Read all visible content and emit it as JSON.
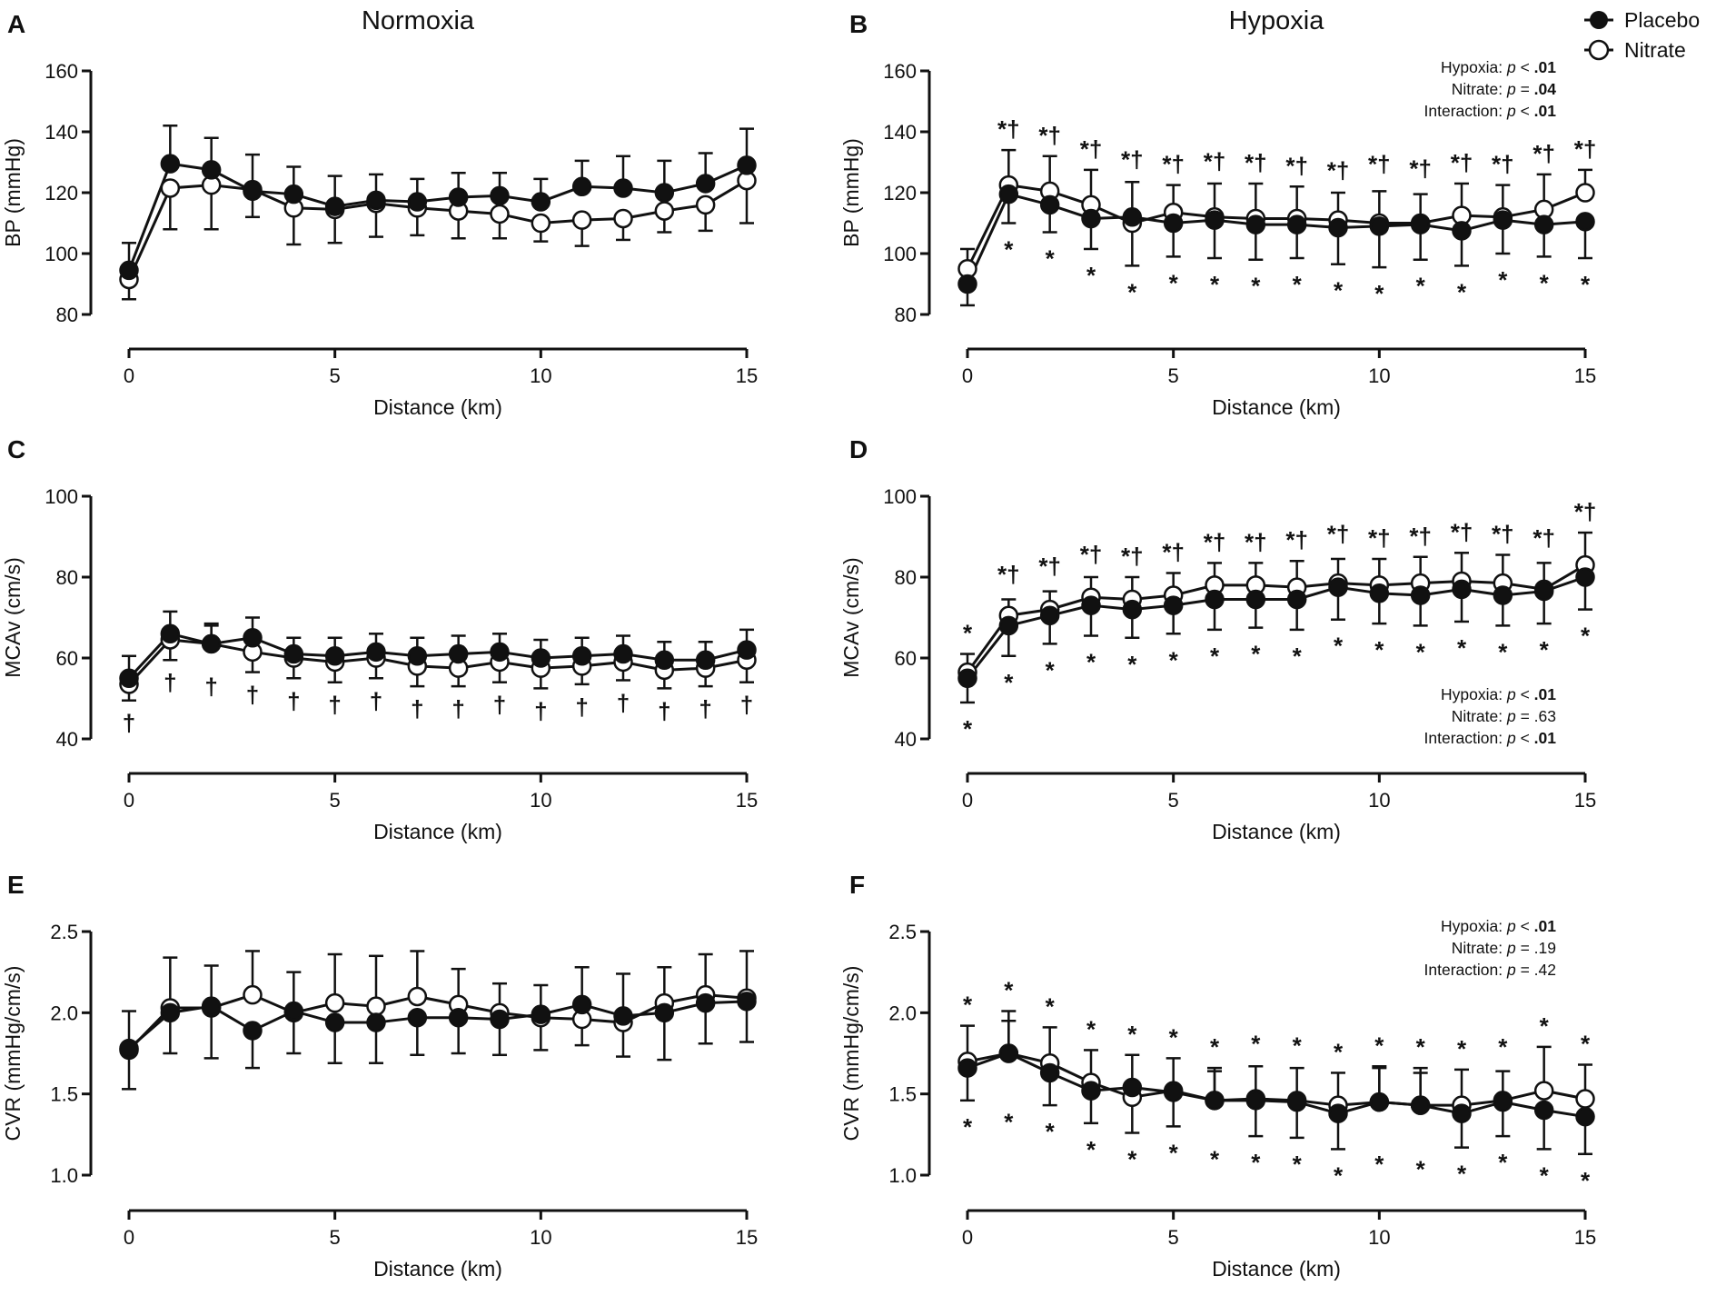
{
  "figure": {
    "column_titles": [
      "Normoxia",
      "Hypoxia"
    ],
    "legend": [
      {
        "label": "Placebo",
        "marker": "filled-circle"
      },
      {
        "label": "Nitrate",
        "marker": "open-circle"
      }
    ],
    "colors": {
      "line": "#111111",
      "open_marker_fill": "#ffffff",
      "background": "#ffffff"
    }
  },
  "chart_data": [
    {
      "panel": "A",
      "type": "line",
      "condition": "Normoxia",
      "xlabel": "Distance (km)",
      "ylabel": "BP (mmHg)",
      "xlim": [
        0,
        15
      ],
      "xticks": [
        0,
        5,
        10,
        15
      ],
      "ylim": [
        80,
        160
      ],
      "yticks": [
        80,
        100,
        120,
        140,
        160
      ],
      "x": [
        0,
        1,
        2,
        3,
        4,
        5,
        6,
        7,
        8,
        9,
        10,
        11,
        12,
        13,
        14,
        15
      ],
      "series": [
        {
          "name": "Placebo",
          "marker": "filled",
          "values": [
            94.5,
            129.5,
            127.5,
            120.5,
            119.5,
            115.5,
            117.5,
            117,
            118.5,
            119,
            117,
            122,
            121.5,
            120,
            123,
            129
          ],
          "errors": [
            9,
            12.5,
            10.5,
            8.5,
            9,
            10,
            8.5,
            7.5,
            8,
            7.5,
            7.5,
            8.5,
            10.5,
            10.5,
            10,
            12
          ]
        },
        {
          "name": "Nitrate",
          "marker": "open",
          "values": [
            91.5,
            121.5,
            122.5,
            121,
            115,
            114.5,
            116.5,
            115,
            114,
            113,
            110,
            111,
            111.5,
            114,
            116,
            124
          ],
          "errors": [
            6.5,
            13.5,
            14.5,
            11.5,
            12,
            11,
            11,
            9,
            9,
            8,
            6,
            8.5,
            7,
            7,
            8.5,
            14
          ]
        }
      ],
      "upper_annotations": [],
      "lower_annotations": [],
      "stats": []
    },
    {
      "panel": "B",
      "type": "line",
      "condition": "Hypoxia",
      "xlabel": "Distance (km)",
      "ylabel": "BP (mmHg)",
      "xlim": [
        0,
        15
      ],
      "xticks": [
        0,
        5,
        10,
        15
      ],
      "ylim": [
        80,
        160
      ],
      "yticks": [
        80,
        100,
        120,
        140,
        160
      ],
      "x": [
        0,
        1,
        2,
        3,
        4,
        5,
        6,
        7,
        8,
        9,
        10,
        11,
        12,
        13,
        14,
        15
      ],
      "series": [
        {
          "name": "Placebo",
          "marker": "filled",
          "values": [
            90,
            119.5,
            116,
            111.5,
            112,
            110,
            111,
            109.5,
            109.5,
            108.5,
            109,
            109.5,
            107.5,
            111,
            109.5,
            110.5
          ],
          "errors": [
            7,
            9.5,
            9,
            10,
            11.5,
            11,
            12.5,
            11.5,
            11,
            12,
            13.5,
            11.5,
            11.5,
            11,
            10.5,
            12
          ]
        },
        {
          "name": "Nitrate",
          "marker": "open",
          "values": [
            95,
            122.5,
            120.5,
            116,
            110,
            113.5,
            112,
            111.5,
            111.5,
            111,
            110,
            110,
            112.5,
            112,
            114.5,
            120
          ],
          "errors": [
            6.5,
            11.5,
            11.5,
            11.5,
            14,
            9,
            11,
            11.5,
            10.5,
            9,
            10.5,
            9.5,
            10.5,
            10.5,
            11.5,
            7.5
          ]
        }
      ],
      "upper_annotations": [
        "",
        "*†",
        "*†",
        "*†",
        "*†",
        "*†",
        "*†",
        "*†",
        "*†",
        "*†",
        "*†",
        "*†",
        "*†",
        "*†",
        "*†",
        "*†"
      ],
      "lower_annotations": [
        "",
        "*",
        "*",
        "*",
        "*",
        "*",
        "*",
        "*",
        "*",
        "*",
        "*",
        "*",
        "*",
        "*",
        "*",
        "*"
      ],
      "stats": [
        {
          "name": "Hypoxia:",
          "p": "p",
          "op": " < ",
          "value": ".01",
          "bold": true
        },
        {
          "name": "Nitrate:",
          "p": "p",
          "op": " = ",
          "value": ".04",
          "bold": true
        },
        {
          "name": "Interaction:",
          "p": "p",
          "op": " < ",
          "value": ".01",
          "bold": true
        }
      ]
    },
    {
      "panel": "C",
      "type": "line",
      "condition": "Normoxia",
      "xlabel": "Distance (km)",
      "ylabel": "MCAv (cm/s)",
      "xlim": [
        0,
        15
      ],
      "xticks": [
        0,
        5,
        10,
        15
      ],
      "ylim": [
        40,
        100
      ],
      "yticks": [
        40,
        60,
        80,
        100
      ],
      "x": [
        0,
        1,
        2,
        3,
        4,
        5,
        6,
        7,
        8,
        9,
        10,
        11,
        12,
        13,
        14,
        15
      ],
      "series": [
        {
          "name": "Placebo",
          "marker": "filled",
          "values": [
            55,
            66,
            63.5,
            65,
            61,
            60.5,
            61.5,
            60.5,
            61,
            61.5,
            60,
            60.5,
            61,
            59.5,
            59.5,
            62
          ],
          "errors": [
            5.5,
            5.5,
            4.5,
            5,
            4,
            4.5,
            4.5,
            4.5,
            4.5,
            4.5,
            4.5,
            4.5,
            4.5,
            4.5,
            4.5,
            5
          ]
        },
        {
          "name": "Nitrate",
          "marker": "open",
          "values": [
            53.5,
            64.5,
            63.5,
            61.5,
            60,
            59,
            60,
            58,
            57.5,
            59,
            57.5,
            58,
            59,
            57,
            57.5,
            59.5
          ],
          "errors": [
            4,
            5,
            5,
            5,
            5,
            5,
            5,
            5,
            4.5,
            5,
            5,
            4.5,
            4.5,
            4.5,
            4.5,
            5.5
          ]
        }
      ],
      "upper_annotations": [],
      "lower_annotations": [
        "†",
        "†",
        "†",
        "†",
        "†",
        "†",
        "†",
        "†",
        "†",
        "†",
        "†",
        "†",
        "†",
        "†",
        "†",
        "†"
      ],
      "stats": []
    },
    {
      "panel": "D",
      "type": "line",
      "condition": "Hypoxia",
      "xlabel": "Distance (km)",
      "ylabel": "MCAv (cm/s)",
      "xlim": [
        0,
        15
      ],
      "xticks": [
        0,
        5,
        10,
        15
      ],
      "ylim": [
        40,
        100
      ],
      "yticks": [
        40,
        60,
        80,
        100
      ],
      "x": [
        0,
        1,
        2,
        3,
        4,
        5,
        6,
        7,
        8,
        9,
        10,
        11,
        12,
        13,
        14,
        15
      ],
      "series": [
        {
          "name": "Placebo",
          "marker": "filled",
          "values": [
            55,
            68,
            70.5,
            73,
            72,
            73,
            74.5,
            74.5,
            74.5,
            77.5,
            76,
            75.5,
            77,
            75.5,
            76.5,
            80
          ],
          "errors": [
            6,
            7.5,
            7,
            7.5,
            7,
            7,
            7.5,
            7,
            7.5,
            8,
            7.5,
            7.5,
            8,
            7.5,
            8,
            8
          ]
        },
        {
          "name": "Nitrate",
          "marker": "open",
          "values": [
            56.5,
            70.5,
            72,
            75,
            74.5,
            75.5,
            78,
            78,
            77.5,
            78.5,
            78,
            78.5,
            79,
            78.5,
            77,
            83
          ],
          "errors": [
            4.5,
            4,
            4.5,
            5,
            5.5,
            5.5,
            5.5,
            5.5,
            6.5,
            6,
            6.5,
            6.5,
            7,
            7,
            6.5,
            8
          ]
        }
      ],
      "upper_annotations": [
        "*",
        "*†",
        "*†",
        "*†",
        "*†",
        "*†",
        "*†",
        "*†",
        "*†",
        "*†",
        "*†",
        "*†",
        "*†",
        "*†",
        "*†",
        "*†"
      ],
      "lower_annotations": [
        "*",
        "*",
        "*",
        "*",
        "*",
        "*",
        "*",
        "*",
        "*",
        "*",
        "*",
        "*",
        "*",
        "*",
        "*",
        "*"
      ],
      "stats": [
        {
          "name": "Hypoxia:",
          "p": "p",
          "op": " < ",
          "value": ".01",
          "bold": true
        },
        {
          "name": "Nitrate:",
          "p": "p",
          "op": " = ",
          "value": ".63",
          "bold": false
        },
        {
          "name": "Interaction:",
          "p": "p",
          "op": " < ",
          "value": ".01",
          "bold": true
        }
      ]
    },
    {
      "panel": "E",
      "type": "line",
      "condition": "Normoxia",
      "xlabel": "Distance (km)",
      "ylabel": "CVR (mmHg/cm/s)",
      "xlim": [
        0,
        15
      ],
      "xticks": [
        0,
        5,
        10,
        15
      ],
      "ylim": [
        1.0,
        2.5
      ],
      "yticks": [
        1.0,
        1.5,
        2.0,
        2.5
      ],
      "x": [
        0,
        1,
        2,
        3,
        4,
        5,
        6,
        7,
        8,
        9,
        10,
        11,
        12,
        13,
        14,
        15
      ],
      "series": [
        {
          "name": "Placebo",
          "marker": "filled",
          "values": [
            1.78,
            2.0,
            2.04,
            1.89,
            2.01,
            1.94,
            1.94,
            1.97,
            1.97,
            1.96,
            1.99,
            2.05,
            1.98,
            2.0,
            2.06,
            2.07
          ],
          "errors": [
            0.23,
            0.25,
            0.25,
            0.23,
            0.24,
            0.25,
            0.25,
            0.23,
            0.22,
            0.22,
            0.18,
            0.23,
            0.26,
            0.29,
            0.25,
            0.25
          ]
        },
        {
          "name": "Nitrate",
          "marker": "open",
          "values": [
            1.77,
            2.03,
            2.03,
            2.11,
            2.0,
            2.06,
            2.04,
            2.1,
            2.05,
            2.0,
            1.97,
            1.96,
            1.94,
            2.06,
            2.11,
            2.09
          ],
          "errors": [
            0.24,
            0.31,
            0.31,
            0.27,
            0.25,
            0.3,
            0.31,
            0.28,
            0.22,
            0.18,
            0.2,
            0.16,
            0.21,
            0.22,
            0.25,
            0.29
          ]
        }
      ],
      "upper_annotations": [],
      "lower_annotations": [],
      "stats": []
    },
    {
      "panel": "F",
      "type": "line",
      "condition": "Hypoxia",
      "xlabel": "Distance (km)",
      "ylabel": "CVR (mmHg/cm/s)",
      "xlim": [
        0,
        15
      ],
      "xticks": [
        0,
        5,
        10,
        15
      ],
      "ylim": [
        1.0,
        2.5
      ],
      "yticks": [
        1.0,
        1.5,
        2.0,
        2.5
      ],
      "x": [
        0,
        1,
        2,
        3,
        4,
        5,
        6,
        7,
        8,
        9,
        10,
        11,
        12,
        13,
        14,
        15
      ],
      "series": [
        {
          "name": "Placebo",
          "marker": "filled",
          "values": [
            1.66,
            1.75,
            1.63,
            1.52,
            1.54,
            1.51,
            1.46,
            1.46,
            1.45,
            1.38,
            1.45,
            1.43,
            1.38,
            1.45,
            1.4,
            1.36
          ],
          "errors": [
            0.2,
            0.26,
            0.2,
            0.2,
            0.2,
            0.21,
            0.2,
            0.22,
            0.22,
            0.22,
            0.22,
            0.23,
            0.21,
            0.21,
            0.24,
            0.23
          ]
        },
        {
          "name": "Nitrate",
          "marker": "open",
          "values": [
            1.7,
            1.75,
            1.69,
            1.57,
            1.48,
            1.52,
            1.46,
            1.47,
            1.46,
            1.43,
            1.45,
            1.43,
            1.43,
            1.46,
            1.52,
            1.47
          ],
          "errors": [
            0.22,
            0.2,
            0.22,
            0.2,
            0.22,
            0.2,
            0.18,
            0.2,
            0.2,
            0.2,
            0.21,
            0.2,
            0.22,
            0.18,
            0.27,
            0.21
          ]
        }
      ],
      "upper_annotations": [
        "*",
        "*",
        "*",
        "*",
        "*",
        "*",
        "*",
        "*",
        "*",
        "*",
        "*",
        "*",
        "*",
        "*",
        "*",
        "*"
      ],
      "lower_annotations": [
        "*",
        "*",
        "*",
        "*",
        "*",
        "*",
        "*",
        "*",
        "*",
        "*",
        "*",
        "*",
        "*",
        "*",
        "*",
        "*"
      ],
      "stats": [
        {
          "name": "Hypoxia:",
          "p": "p",
          "op": " < ",
          "value": ".01",
          "bold": true
        },
        {
          "name": "Nitrate:",
          "p": "p",
          "op": " = ",
          "value": ".19",
          "bold": false
        },
        {
          "name": "Interaction:",
          "p": "p",
          "op": " = ",
          "value": ".42",
          "bold": false
        }
      ]
    }
  ]
}
